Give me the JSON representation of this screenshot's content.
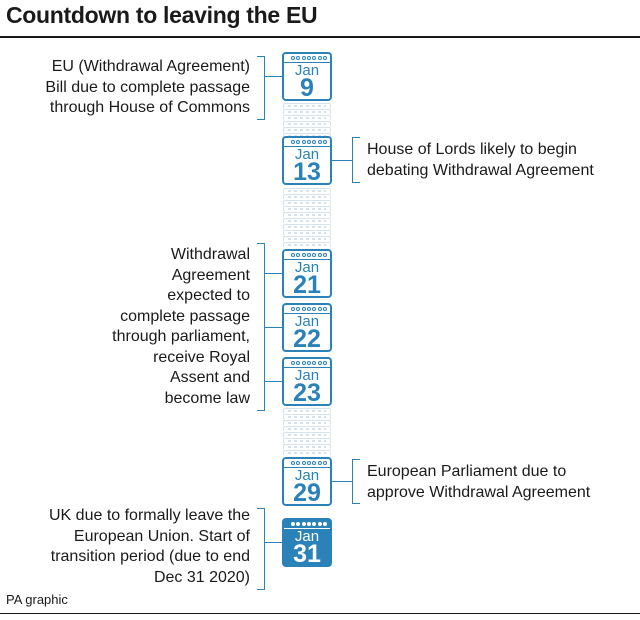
{
  "title": "Countdown to leaving the EU",
  "source": "PA graphic",
  "accent_color": "#2a82b8",
  "calendar_icon": "calendar-icon",
  "dates": [
    {
      "month": "Jan",
      "day": "9"
    },
    {
      "month": "Jan",
      "day": "13"
    },
    {
      "month": "Jan",
      "day": "21"
    },
    {
      "month": "Jan",
      "day": "22"
    },
    {
      "month": "Jan",
      "day": "23"
    },
    {
      "month": "Jan",
      "day": "29"
    },
    {
      "month": "Jan",
      "day": "31",
      "highlighted": true
    }
  ],
  "notes": {
    "jan9": [
      "EU (Withdrawal Agreement)",
      "Bill due to complete passage",
      "through House of Commons"
    ],
    "jan13": [
      "House of Lords likely to begin",
      "debating Withdrawal Agreement"
    ],
    "jan21_23": [
      "Withdrawal",
      "Agreement",
      "expected to",
      "complete passage",
      "through parliament,",
      "receive Royal",
      "Assent and",
      "become law"
    ],
    "jan29": [
      "European Parliament due to",
      "approve Withdrawal Agreement"
    ],
    "jan31": [
      "UK due to formally leave the",
      "European Union. Start of",
      "transition period (due to end",
      "Dec 31 2020)"
    ]
  }
}
